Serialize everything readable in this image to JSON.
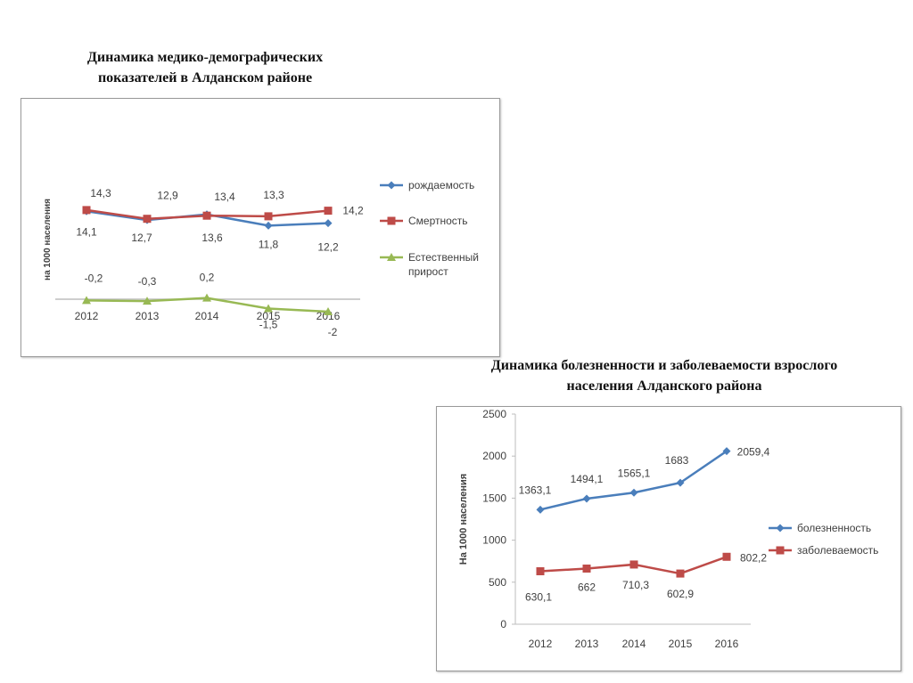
{
  "titles": {
    "chart1": [
      "Динамика медико-демографических",
      "показателей в Алданском районе"
    ],
    "chart2": [
      "Динамика болезненности и заболеваемости взрослого",
      "населения Алданского района"
    ]
  },
  "colors": {
    "blue": "#4a7ebb",
    "red": "#be4b48",
    "green": "#98b954",
    "axis": "#bdbdbd",
    "text": "#404040"
  },
  "chart_data": [
    {
      "type": "line",
      "title": "Динамика медико-демографических показателей в Алданском районе",
      "ylabel": "на 1000 населения",
      "xlabel": "",
      "categories": [
        "2012",
        "2013",
        "2014",
        "2015",
        "2016"
      ],
      "ylim": [
        -3,
        15.5
      ],
      "legend_position": "right",
      "grid": false,
      "series": [
        {
          "name": "рождаемость",
          "color": "#4a7ebb",
          "marker": "diamond",
          "values": [
            14.1,
            12.7,
            13.6,
            11.8,
            12.2
          ],
          "labels": [
            "14,1",
            "12,7",
            "13,6",
            "11,8",
            "12,2"
          ]
        },
        {
          "name": "Смертность",
          "color": "#be4b48",
          "marker": "square",
          "values": [
            14.3,
            12.9,
            13.4,
            13.3,
            14.2
          ],
          "labels": [
            "14,3",
            "12,9",
            "13,4",
            "13,3",
            "14,2"
          ]
        },
        {
          "name": "Естественный прирост",
          "legend_lines": [
            "Естественный",
            "прирост"
          ],
          "color": "#98b954",
          "marker": "triangle",
          "values": [
            -0.2,
            -0.3,
            0.2,
            -1.5,
            -2
          ],
          "labels": [
            "-0,2",
            "-0,3",
            "0,2",
            "-1,5",
            "-2"
          ]
        }
      ]
    },
    {
      "type": "line",
      "title": "Динамика болезненности и заболеваемости взрослого населения Алданского района",
      "ylabel": "На 1000 населения",
      "xlabel": "",
      "categories": [
        "2012",
        "2013",
        "2014",
        "2015",
        "2016"
      ],
      "ylim": [
        0,
        2500
      ],
      "yticks": [
        "0",
        "500",
        "1000",
        "1500",
        "2000",
        "2500"
      ],
      "legend_position": "right",
      "grid": false,
      "series": [
        {
          "name": "болезненность",
          "color": "#4a7ebb",
          "marker": "diamond",
          "values": [
            1363.1,
            1494.1,
            1565.1,
            1683,
            2059.4
          ],
          "labels": [
            "1363,1",
            "1494,1",
            "1565,1",
            "1683",
            "2059,4"
          ]
        },
        {
          "name": "заболеваемость",
          "color": "#be4b48",
          "marker": "square",
          "values": [
            630.1,
            662,
            710.3,
            602.9,
            802.2
          ],
          "labels": [
            "630,1",
            "662",
            "710,3",
            "602,9",
            "802,2"
          ]
        }
      ]
    }
  ]
}
